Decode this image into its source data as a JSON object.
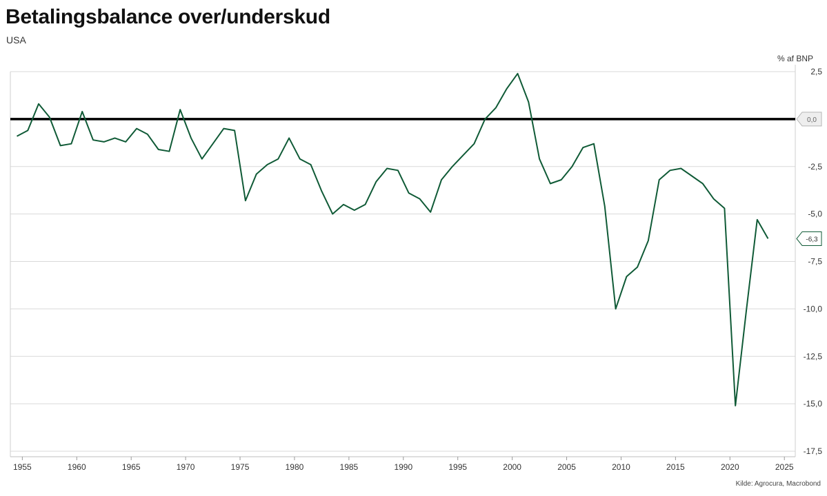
{
  "title": "Betalingsbalance over/underskud",
  "subtitle": "USA",
  "unit_label": "% af BNP",
  "source": "Kilde: Agrocura, Macrobond",
  "colors": {
    "line": "#0f5a36",
    "zero_line": "#000000",
    "grid": "#d9d9d9"
  },
  "chart_data": {
    "type": "line",
    "title": "Betalingsbalance over/underskud",
    "subtitle": "USA",
    "ylabel": "% af BNP",
    "xlabel": "",
    "xlim": [
      1955,
      2025
    ],
    "ylim": [
      -17.5,
      2.5
    ],
    "yticks": [
      2.5,
      0,
      -2.5,
      -5,
      -7.5,
      -10,
      -12.5,
      -15,
      -17.5
    ],
    "ytick_labels": [
      "2,5",
      "0,0",
      "-2,5",
      "-5,0",
      "-7,5",
      "-10,0",
      "-12,5",
      "-15,0",
      "-17,5"
    ],
    "xticks": [
      1955,
      1960,
      1965,
      1970,
      1975,
      1980,
      1985,
      1990,
      1995,
      2000,
      2005,
      2010,
      2015,
      2020,
      2025
    ],
    "xtick_labels": [
      "1955",
      "1960",
      "1965",
      "1970",
      "1975",
      "1980",
      "1985",
      "1990",
      "1995",
      "2000",
      "2005",
      "2010",
      "2015",
      "2020",
      "2025"
    ],
    "grid": true,
    "reference_line": {
      "y": 0,
      "label": "0,0"
    },
    "end_label": "-6,3",
    "series": [
      {
        "x": [
          1954.5,
          1955.5,
          1956.5,
          1957.5,
          1958.5,
          1959.5,
          1960.5,
          1961.5,
          1962.5,
          1963.5,
          1964.5,
          1965.5,
          1966.5,
          1967.5,
          1968.5,
          1969.5,
          1970.5,
          1971.5,
          1972.5,
          1973.5,
          1974.5,
          1975.5,
          1976.5,
          1977.5,
          1978.5,
          1979.5,
          1980.5,
          1981.5,
          1982.5,
          1983.5,
          1984.5,
          1985.5,
          1986.5,
          1987.5,
          1988.5,
          1989.5,
          1990.5,
          1991.5,
          1992.5,
          1993.5,
          1994.5,
          1995.5,
          1996.5,
          1997.5,
          1998.5,
          1999.5,
          2000.5,
          2001.5,
          2002.5,
          2003.5,
          2004.5,
          2005.5,
          2006.5,
          2007.5,
          2008.5,
          2009.5,
          2010.5,
          2011.5,
          2012.5,
          2013.5,
          2014.5,
          2015.5,
          2016.5,
          2017.5,
          2018.5,
          2019.5,
          2020.5,
          2021.5,
          2022.5,
          2023.5
        ],
        "y": [
          -0.9,
          -0.6,
          0.8,
          0.1,
          -1.4,
          -1.3,
          0.4,
          -1.1,
          -1.2,
          -1.0,
          -1.2,
          -0.5,
          -0.8,
          -1.6,
          -1.7,
          0.5,
          -1.0,
          -2.1,
          -1.3,
          -0.5,
          -0.6,
          -4.3,
          -2.9,
          -2.4,
          -2.1,
          -1.0,
          -2.1,
          -2.4,
          -3.8,
          -5.0,
          -4.5,
          -4.8,
          -4.5,
          -3.3,
          -2.6,
          -2.7,
          -3.9,
          -4.2,
          -4.9,
          -3.2,
          -2.5,
          -1.9,
          -1.3,
          0.0,
          0.6,
          1.6,
          2.4,
          0.9,
          -2.1,
          -3.4,
          -3.2,
          -2.5,
          -1.5,
          -1.3,
          -4.6,
          -10.0,
          -8.3,
          -7.8,
          -6.4,
          -3.2,
          -2.7,
          -2.6,
          -3.0,
          -3.4,
          -4.2,
          -4.7,
          -15.1,
          -10.1,
          -5.3,
          -6.3
        ]
      }
    ]
  }
}
